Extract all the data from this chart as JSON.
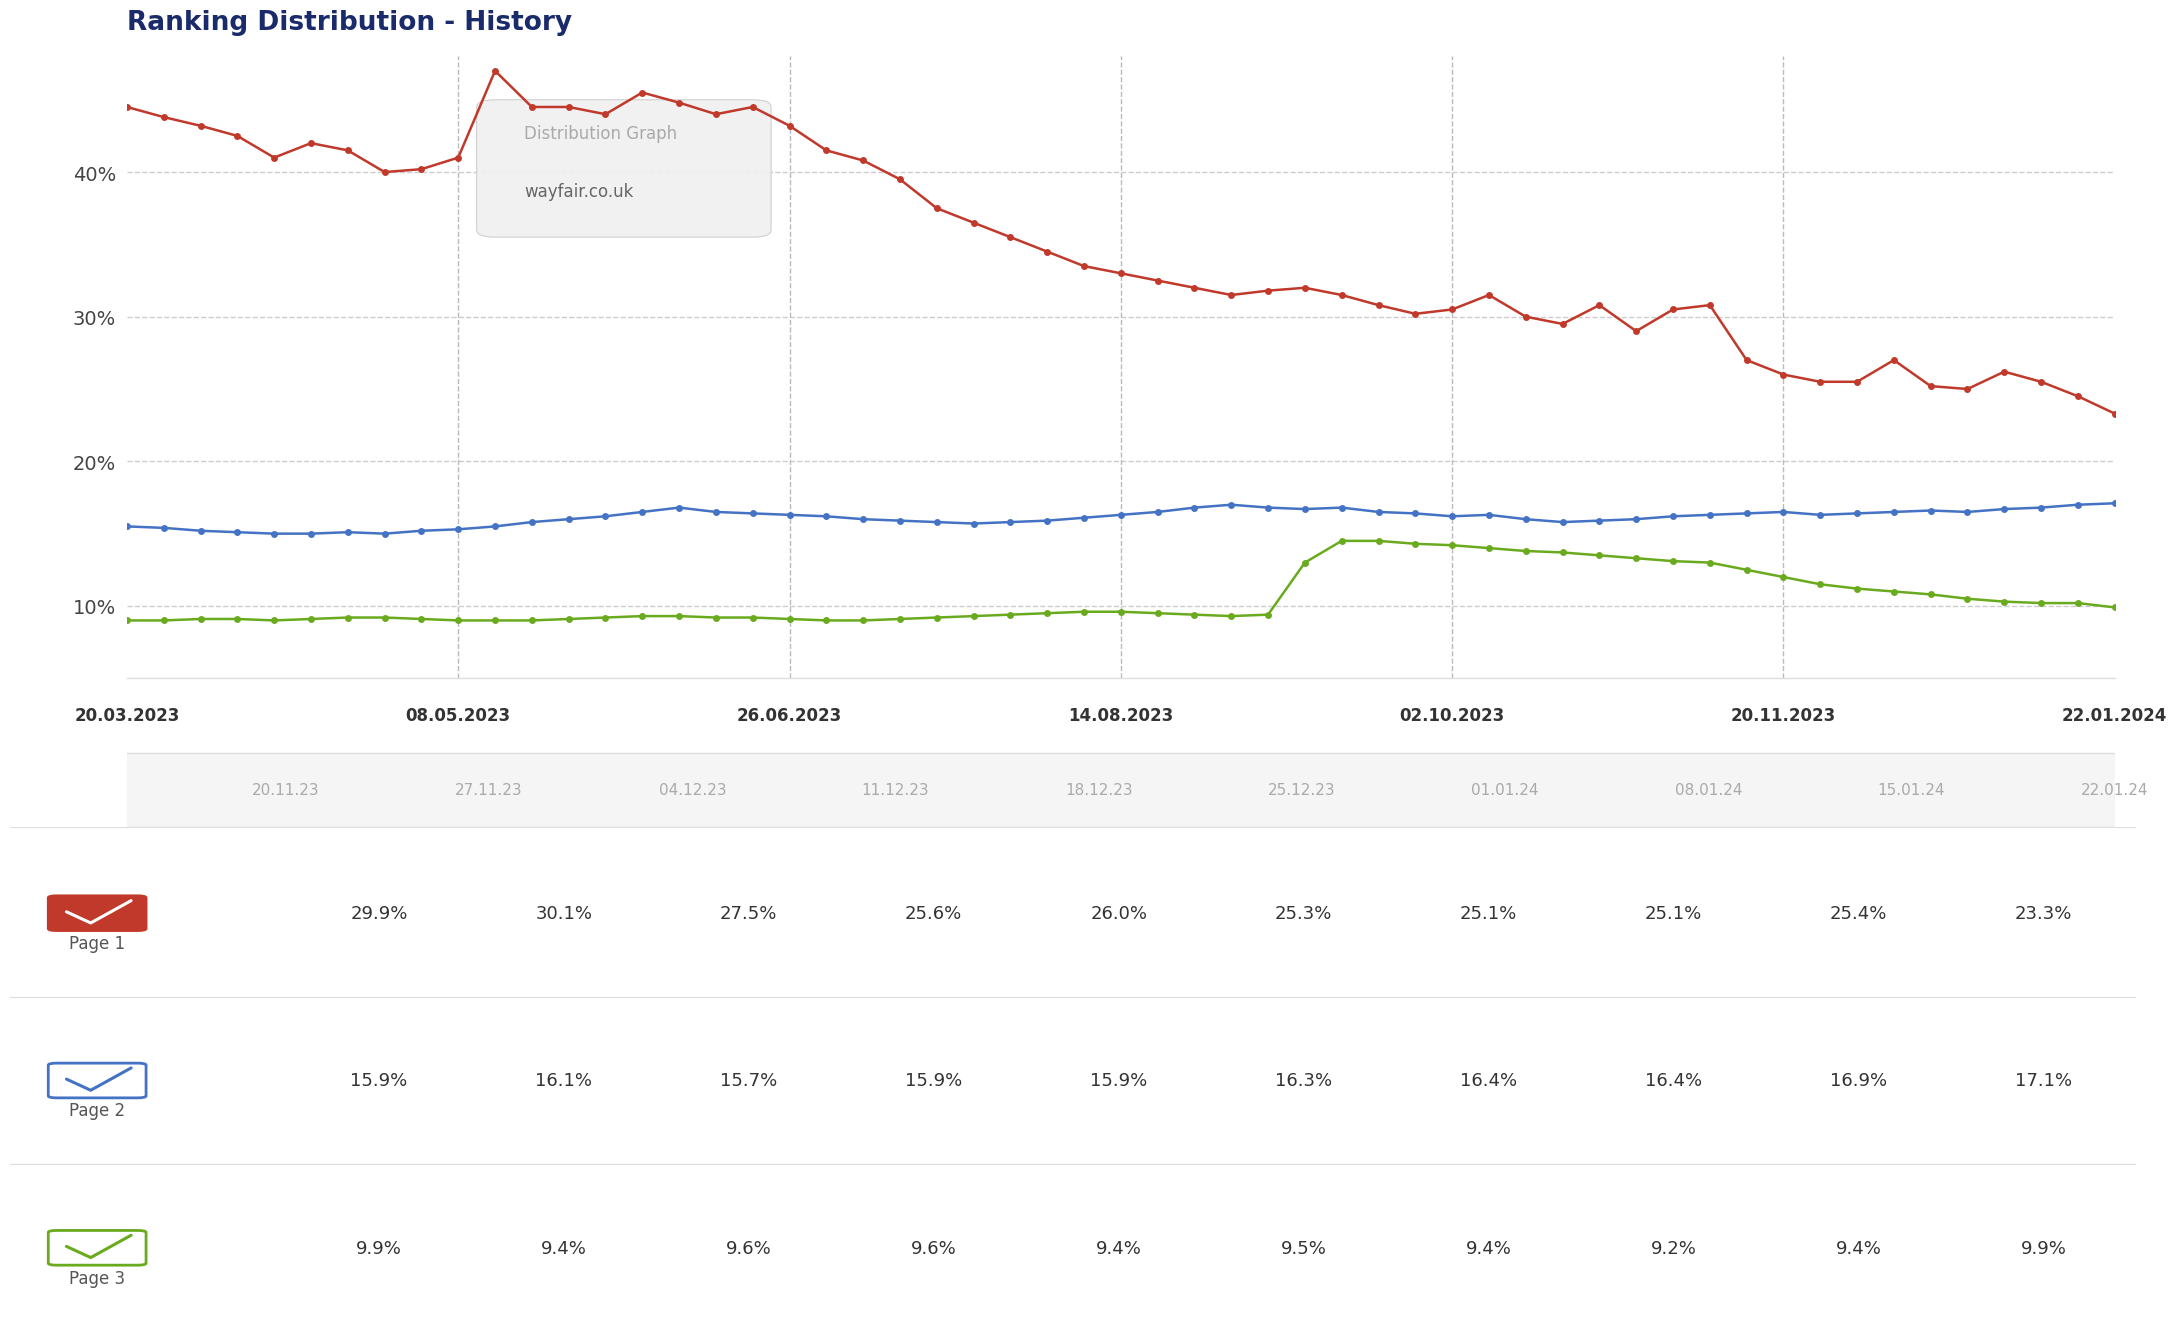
{
  "title": "Ranking Distribution - History",
  "title_color": "#1a2b6b",
  "background_color": "#ffffff",
  "plot_bg_color": "#ffffff",
  "tooltip_text": [
    "Distribution Graph",
    "wayfair.co.uk"
  ],
  "x_labels_top": [
    "20.03.2023",
    "08.05.2023",
    "26.06.2023",
    "14.08.2023",
    "02.10.2023",
    "20.11.2023",
    "22.01.2024"
  ],
  "x_labels_bottom": [
    "20.11.23",
    "27.11.23",
    "04.12.23",
    "11.12.23",
    "18.12.23",
    "25.12.23",
    "01.01.24",
    "08.01.24",
    "15.01.24",
    "22.01.24"
  ],
  "yticks": [
    10,
    20,
    30,
    40
  ],
  "ylim": [
    5,
    48
  ],
  "page1_color": "#c0392b",
  "page2_color": "#4472c4",
  "page3_color": "#6aaa1e",
  "page1_values": [
    44.5,
    43.8,
    43.2,
    42.5,
    41.0,
    42.0,
    41.5,
    40.0,
    40.2,
    41.0,
    47.0,
    44.5,
    44.5,
    44.0,
    45.5,
    44.8,
    44.0,
    44.5,
    43.2,
    41.5,
    40.8,
    39.5,
    37.5,
    36.5,
    35.5,
    34.5,
    33.5,
    33.0,
    32.5,
    32.0,
    31.5,
    31.8,
    32.0,
    31.5,
    30.8,
    30.2,
    30.5,
    31.5,
    30.0,
    29.5,
    30.8,
    29.0,
    30.5,
    30.8,
    27.0,
    26.0,
    25.5,
    25.5,
    27.0,
    25.2,
    25.0,
    26.2,
    25.5,
    24.5,
    23.3
  ],
  "page2_values": [
    15.5,
    15.4,
    15.2,
    15.1,
    15.0,
    15.0,
    15.1,
    15.0,
    15.2,
    15.3,
    15.5,
    15.8,
    16.0,
    16.2,
    16.5,
    16.8,
    16.5,
    16.4,
    16.3,
    16.2,
    16.0,
    15.9,
    15.8,
    15.7,
    15.8,
    15.9,
    16.1,
    16.3,
    16.5,
    16.8,
    17.0,
    16.8,
    16.7,
    16.8,
    16.5,
    16.4,
    16.2,
    16.3,
    16.0,
    15.8,
    15.9,
    16.0,
    16.2,
    16.3,
    16.4,
    16.5,
    16.3,
    16.4,
    16.5,
    16.6,
    16.5,
    16.7,
    16.8,
    17.0,
    17.1
  ],
  "page3_values": [
    9.0,
    9.0,
    9.1,
    9.1,
    9.0,
    9.1,
    9.2,
    9.2,
    9.1,
    9.0,
    9.0,
    9.0,
    9.1,
    9.2,
    9.3,
    9.3,
    9.2,
    9.2,
    9.1,
    9.0,
    9.0,
    9.1,
    9.2,
    9.3,
    9.4,
    9.5,
    9.6,
    9.6,
    9.5,
    9.4,
    9.3,
    9.4,
    13.0,
    14.5,
    14.5,
    14.3,
    14.2,
    14.0,
    13.8,
    13.7,
    13.5,
    13.3,
    13.1,
    13.0,
    12.5,
    12.0,
    11.5,
    11.2,
    11.0,
    10.8,
    10.5,
    10.3,
    10.2,
    10.2,
    9.9
  ],
  "table_data": {
    "Page 1": [
      "29.9%",
      "30.1%",
      "27.5%",
      "25.6%",
      "26.0%",
      "25.3%",
      "25.1%",
      "25.1%",
      "25.4%",
      "23.3%"
    ],
    "Page 2": [
      "15.9%",
      "16.1%",
      "15.7%",
      "15.9%",
      "15.9%",
      "16.3%",
      "16.4%",
      "16.4%",
      "16.9%",
      "17.1%"
    ],
    "Page 3": [
      "9.9%",
      "9.4%",
      "9.6%",
      "9.6%",
      "9.4%",
      "9.5%",
      "9.4%",
      "9.2%",
      "9.4%",
      "9.9%"
    ]
  },
  "grid_color": "#cccccc",
  "vline_color": "#bbbbbb",
  "dot_size": 5,
  "line_width": 1.8,
  "n_vlines": 7
}
